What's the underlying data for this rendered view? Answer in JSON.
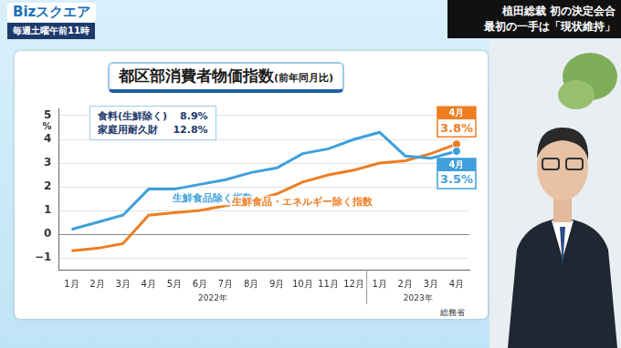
{
  "screen": {
    "logo": "Bizスクエア",
    "schedule": "毎週土曜午前11時",
    "headline": [
      "植田総裁 初の決定会合",
      "最初の一手は「現状維持」"
    ]
  },
  "chart_data": {
    "type": "line",
    "title": "都区部消費者物価指数",
    "subtitle": "(前年同月比)",
    "ylabel": "%",
    "source": "総務省",
    "categories": [
      "1月",
      "2月",
      "3月",
      "4月",
      "5月",
      "6月",
      "7月",
      "8月",
      "9月",
      "10月",
      "11月",
      "12月",
      "1月",
      "2月",
      "3月",
      "4月"
    ],
    "year_groups": [
      {
        "label": "2022年",
        "first": 0,
        "last": 11
      },
      {
        "label": "2023年",
        "first": 12,
        "last": 15
      }
    ],
    "annotations": [
      {
        "text": "食料(生鮮除く)",
        "value_text": "8.9%"
      },
      {
        "text": "家庭用耐久財",
        "value_text": "12.8%"
      }
    ],
    "series": [
      {
        "name": "生鮮食品除く指数",
        "color": "#3f9fdc",
        "values": [
          0.2,
          0.5,
          0.8,
          1.9,
          1.9,
          2.1,
          2.3,
          2.6,
          2.8,
          3.4,
          3.6,
          4.0,
          4.3,
          3.3,
          3.2,
          3.5
        ],
        "end_label": {
          "category": "4月",
          "value_label": "3.5%"
        }
      },
      {
        "name": "生鮮食品・エネルギー除く指数",
        "color": "#ee7d22",
        "values": [
          -0.7,
          -0.6,
          -0.4,
          0.8,
          0.9,
          1.0,
          1.2,
          1.4,
          1.7,
          2.2,
          2.5,
          2.7,
          3.0,
          3.1,
          3.4,
          3.8
        ],
        "end_label": {
          "category": "4月",
          "value_label": "3.8%"
        }
      }
    ],
    "ylim": [
      -1.5,
      5.3
    ],
    "yticks": [
      {
        "value": -1,
        "label": "−1"
      },
      0,
      1,
      2,
      3,
      4,
      5
    ],
    "grid": true,
    "legend": false
  }
}
